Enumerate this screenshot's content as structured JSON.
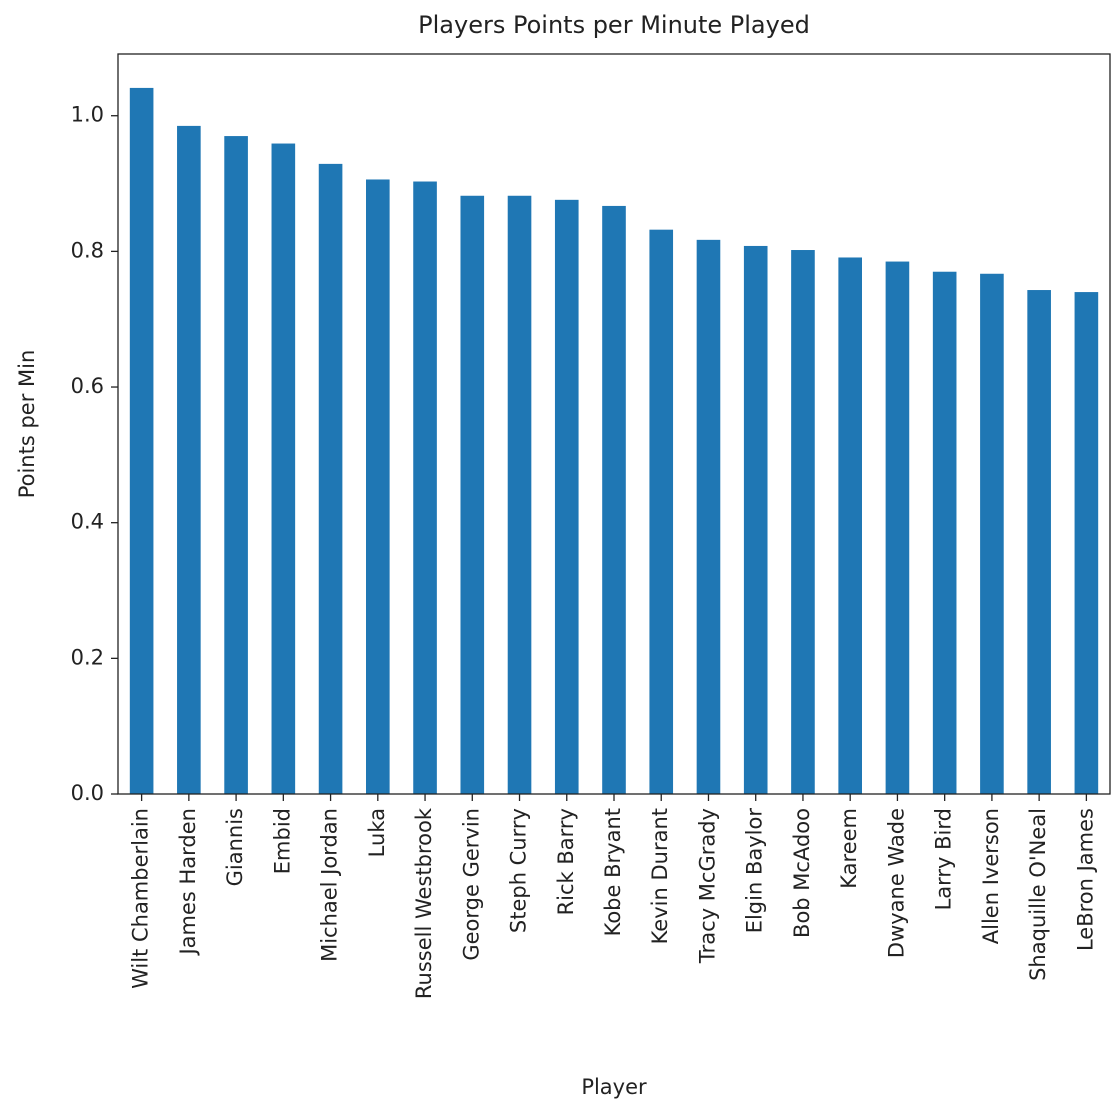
{
  "chart_data": {
    "type": "bar",
    "title": "Players Points per Minute Played",
    "xlabel": "Player",
    "ylabel": "Points per Min",
    "categories": [
      "Wilt Chamberlain",
      "James Harden",
      "Giannis",
      "Embid",
      "Michael Jordan",
      "Luka",
      "Russell Westbrook",
      "George Gervin",
      "Steph Curry",
      "Rick Barry",
      "Kobe Bryant",
      "Kevin Durant",
      "Tracy McGrady",
      "Elgin Baylor",
      "Bob McAdoo",
      "Kareem",
      "Dwyane Wade",
      "Larry Bird",
      "Allen Iverson",
      "Shaquille O'Neal",
      "LeBron James"
    ],
    "values": [
      1.041,
      0.985,
      0.97,
      0.959,
      0.929,
      0.906,
      0.903,
      0.882,
      0.882,
      0.876,
      0.867,
      0.832,
      0.817,
      0.808,
      0.802,
      0.791,
      0.785,
      0.77,
      0.767,
      0.743,
      0.74
    ],
    "color": "#1f77b4",
    "ylim": [
      0,
      1.091
    ],
    "yticks": [
      {
        "value": 0,
        "label": "0.0"
      },
      0.2,
      0.4,
      0.6,
      0.8,
      {
        "value": 1,
        "label": "1.0"
      }
    ],
    "grid": false
  }
}
